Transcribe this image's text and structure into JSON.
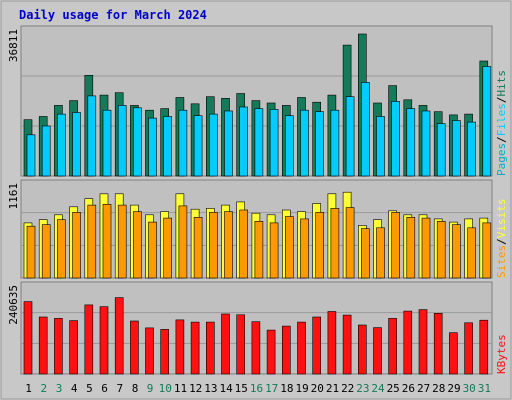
{
  "chart_data": {
    "type": "bar",
    "title": "Daily usage for March 2024",
    "days": [
      "1",
      "2",
      "3",
      "4",
      "5",
      "6",
      "7",
      "8",
      "9",
      "10",
      "11",
      "12",
      "13",
      "14",
      "15",
      "16",
      "17",
      "18",
      "19",
      "20",
      "21",
      "22",
      "23",
      "24",
      "25",
      "26",
      "27",
      "28",
      "29",
      "30",
      "31"
    ],
    "weekend_days": [
      "2",
      "3",
      "9",
      "10",
      "16",
      "17",
      "23",
      "24",
      "30",
      "31"
    ],
    "colors": {
      "hits": "#157a5a",
      "files": "#00ccff",
      "pages": "#00aacc",
      "visits": "#ffff33",
      "sites": "#ff9900",
      "kbytes": "#ff1111",
      "weekday_label": "#000000",
      "weekend_label": "#157a5a",
      "title": "#0000cc",
      "panel_bg": "#c0c0c0",
      "frame": "#d0d0d0"
    },
    "panels": [
      {
        "id": "top",
        "max_label": "36811",
        "ymax": 36811,
        "legend": [
          {
            "text": "Pages",
            "color": "#00aacc"
          },
          {
            "text": "/",
            "color": "#000000"
          },
          {
            "text": "Files",
            "color": "#00ccff"
          },
          {
            "text": "/",
            "color": "#000000"
          },
          {
            "text": "Hits",
            "color": "#157a5a"
          }
        ],
        "series": [
          {
            "key": "hits",
            "values": [
              14200,
              15000,
              17800,
              19000,
              25400,
              20400,
              21000,
              17800,
              16600,
              17000,
              19800,
              18200,
              20000,
              19600,
              20800,
              19000,
              18400,
              17800,
              19800,
              18600,
              20400,
              33000,
              35800,
              18400,
              22800,
              19200,
              17800,
              16200,
              15400,
              15600,
              29000
            ]
          },
          {
            "key": "files",
            "values": [
              10400,
              12600,
              15600,
              16000,
              20200,
              16600,
              17800,
              17200,
              14600,
              15000,
              16600,
              15200,
              15600,
              16400,
              17400,
              17000,
              16800,
              15200,
              16600,
              16200,
              16600,
              20000,
              23600,
              15000,
              18800,
              17000,
              16400,
              13200,
              14000,
              13600,
              27600
            ]
          }
        ]
      },
      {
        "id": "middle",
        "max_label": "1161",
        "ymax": 1161,
        "legend": [
          {
            "text": "Sites",
            "color": "#ff9900"
          },
          {
            "text": "/",
            "color": "#000000"
          },
          {
            "text": "Visits",
            "color": "#ffff33"
          }
        ],
        "series": [
          {
            "key": "visits",
            "values": [
              680,
              720,
              780,
              880,
              980,
              1040,
              1040,
              900,
              780,
              820,
              1040,
              850,
              860,
              900,
              940,
              800,
              780,
              840,
              820,
              920,
              1040,
              1060,
              650,
              720,
              830,
              780,
              780,
              730,
              690,
              730,
              740
            ]
          },
          {
            "key": "sites",
            "values": [
              640,
              660,
              720,
              810,
              900,
              910,
              900,
              820,
              690,
              740,
              890,
              750,
              810,
              820,
              840,
              700,
              680,
              760,
              730,
              810,
              860,
              870,
              610,
              620,
              810,
              750,
              740,
              700,
              660,
              620,
              680
            ]
          }
        ]
      },
      {
        "id": "bottom",
        "max_label": "240635",
        "ymax": 240635,
        "legend": [
          {
            "text": "KBytes",
            "color": "#ff1111"
          }
        ],
        "series": [
          {
            "key": "kbytes",
            "values": [
              198000,
              156000,
              152000,
              146000,
              189000,
              184000,
              209000,
              145000,
              126000,
              122000,
              148000,
              142000,
              142000,
              164000,
              162000,
              143000,
              120000,
              131000,
              142000,
              156000,
              171000,
              161000,
              134000,
              127000,
              152000,
              172000,
              176000,
              166000,
              113000,
              140000,
              147000
            ]
          }
        ]
      }
    ]
  }
}
